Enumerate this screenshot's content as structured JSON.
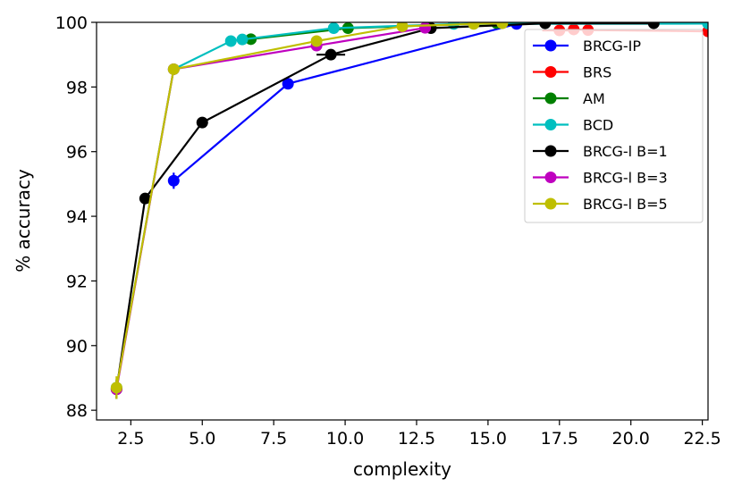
{
  "chart_data": {
    "type": "line",
    "xlabel": "complexity",
    "ylabel": "% accuracy",
    "xlim": [
      1.3,
      22.7
    ],
    "ylim": [
      87.7,
      100
    ],
    "xticks": [
      2.5,
      5.0,
      7.5,
      10.0,
      12.5,
      15.0,
      17.5,
      20.0,
      22.5
    ],
    "xtick_labels": [
      "2.5",
      "5.0",
      "7.5",
      "10.0",
      "12.5",
      "15.0",
      "17.5",
      "20.0",
      "22.5"
    ],
    "yticks": [
      88,
      90,
      92,
      94,
      96,
      98,
      100
    ],
    "ytick_labels": [
      "88",
      "90",
      "92",
      "94",
      "96",
      "98",
      "100"
    ],
    "grid": false,
    "legend_position": "upper-right",
    "series": [
      {
        "name": "BRCG-IP",
        "color": "#0000ff",
        "x": [
          4,
          8,
          16
        ],
        "y": [
          95.1,
          98.1,
          99.95
        ],
        "xerr": [
          0,
          0,
          0
        ],
        "yerr": [
          0.25,
          0.05,
          0
        ]
      },
      {
        "name": "BRS",
        "color": "#ff0000",
        "x": [
          17.5,
          18.0,
          18.5,
          22.7
        ],
        "y": [
          99.75,
          99.78,
          99.76,
          99.72
        ],
        "xerr": [
          0.6,
          0,
          0,
          0
        ],
        "yerr": [
          0,
          0,
          0,
          0
        ]
      },
      {
        "name": "AM",
        "color": "#008000",
        "x": [
          6.7,
          10.1,
          15.3,
          22.7
        ],
        "y": [
          99.48,
          99.82,
          99.98,
          99.98
        ],
        "xerr": [
          0,
          0,
          0,
          0
        ],
        "yerr": [
          0,
          0,
          0,
          0
        ]
      },
      {
        "name": "BCD",
        "color": "#00bfbf",
        "x": [
          2.0,
          4.0,
          6.0,
          6.4,
          9.6,
          13.8,
          22.7
        ],
        "y": [
          88.7,
          98.55,
          99.42,
          99.47,
          99.82,
          99.95,
          99.96
        ],
        "xerr": [
          0,
          0,
          0,
          0,
          0,
          0,
          0
        ],
        "yerr": [
          0,
          0,
          0,
          0,
          0,
          0,
          0
        ]
      },
      {
        "name": "BRCG-l B=1",
        "color": "#000000",
        "x": [
          2.0,
          3.0,
          5.0,
          9.5,
          13.0,
          17.0,
          20.8
        ],
        "y": [
          88.65,
          94.55,
          96.9,
          99.0,
          99.82,
          99.97,
          99.97
        ],
        "xerr": [
          0,
          0,
          0,
          0.5,
          0,
          0,
          0
        ],
        "yerr": [
          0.3,
          0.1,
          0,
          0.15,
          0,
          0,
          0
        ]
      },
      {
        "name": "BRCG-l B=3",
        "color": "#bf00bf",
        "x": [
          2.0,
          4.0,
          9.0,
          12.8
        ],
        "y": [
          88.65,
          98.55,
          99.28,
          99.83
        ],
        "xerr": [
          0,
          0,
          0,
          0
        ],
        "yerr": [
          0,
          0,
          0,
          0
        ]
      },
      {
        "name": "BRCG-l B=5",
        "color": "#bfbf00",
        "x": [
          2.0,
          4.0,
          9.0,
          12.0,
          14.5,
          15.5
        ],
        "y": [
          88.7,
          98.55,
          99.42,
          99.88,
          99.95,
          99.97
        ],
        "xerr": [
          0,
          0,
          0,
          0,
          0,
          0
        ],
        "yerr": [
          0.35,
          0,
          0,
          0,
          0,
          0
        ]
      }
    ]
  }
}
